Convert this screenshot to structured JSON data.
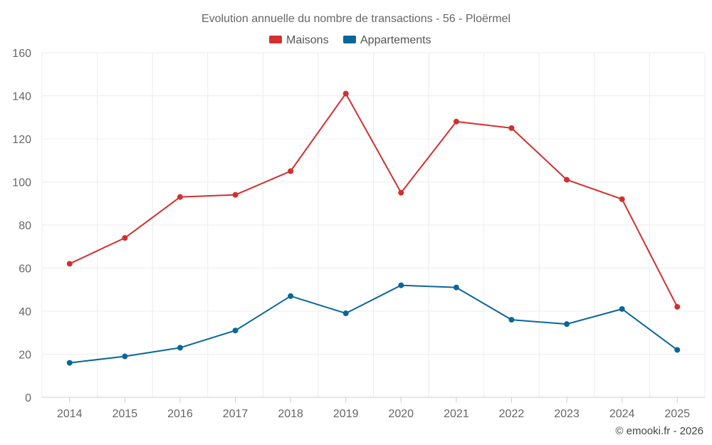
{
  "chart_data": {
    "type": "line",
    "title": "Evolution annuelle du nombre de transactions - 56 - Ploërmel",
    "categories": [
      "2014",
      "2015",
      "2016",
      "2017",
      "2018",
      "2019",
      "2020",
      "2021",
      "2022",
      "2023",
      "2024",
      "2025"
    ],
    "series": [
      {
        "name": "Maisons",
        "color": "#d32f2f",
        "values": [
          62,
          74,
          93,
          94,
          105,
          141,
          95,
          128,
          125,
          101,
          92,
          42
        ]
      },
      {
        "name": "Appartements",
        "color": "#0a6799",
        "values": [
          16,
          19,
          23,
          31,
          47,
          39,
          52,
          51,
          36,
          34,
          41,
          22
        ]
      }
    ],
    "y_ticks": [
      "0",
      "20",
      "40",
      "60",
      "80",
      "100",
      "120",
      "140",
      "160"
    ],
    "ylim": [
      0,
      160
    ],
    "xlabel": "",
    "ylabel": "",
    "grid": true,
    "legend_position": "top-center"
  },
  "credit": "© emooki.fr - 2026"
}
